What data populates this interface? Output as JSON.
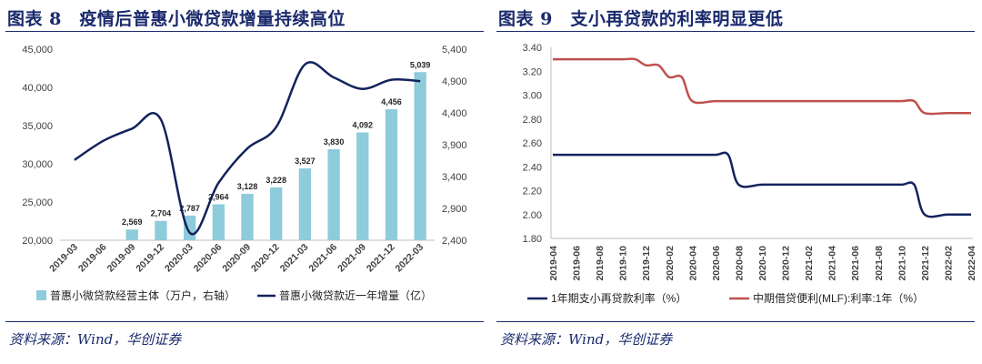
{
  "charts": [
    {
      "title": "图表 8　疫情后普惠小微贷款增量持续高位",
      "source": "资料来源：Wind，华创证券"
    },
    {
      "title": "图表 9　支小再贷款的利率明显更低",
      "source": "资料来源：Wind，华创证券"
    }
  ],
  "chart_data": [
    {
      "type": "bar",
      "categories": [
        "2019-03",
        "2019-06",
        "2019-09",
        "2019-12",
        "2020-03",
        "2020-06",
        "2020-09",
        "2020-12",
        "2021-03",
        "2021-06",
        "2021-09",
        "2021-12",
        "2022-03"
      ],
      "series": [
        {
          "name": "普惠小微贷款经营主体（万户，右轴）",
          "axis": "right",
          "type": "bar",
          "color": "#8ecbdb",
          "values": [
            null,
            null,
            2569,
            2704,
            2787,
            2964,
            3128,
            3228,
            3527,
            3830,
            4092,
            4456,
            5039
          ],
          "labels": [
            "",
            "",
            "2,569",
            "2,704",
            "2,787",
            "2,964",
            "3,128",
            "3,228",
            "3,527",
            "3,830",
            "4,092",
            "4,456",
            "5,039"
          ]
        },
        {
          "name": "普惠小微贷款近一年增量（亿）",
          "axis": "left",
          "type": "line",
          "color": "#13235b",
          "values": [
            30500,
            33000,
            34600,
            35800,
            21000,
            27500,
            32000,
            34800,
            43000,
            41300,
            39800,
            41000,
            40800
          ]
        }
      ],
      "yAxisLeft": {
        "min": 20000,
        "max": 45000,
        "ticks": [
          "20,000",
          "25,000",
          "30,000",
          "35,000",
          "40,000",
          "45,000"
        ]
      },
      "yAxisRight": {
        "min": 2400,
        "max": 5400,
        "ticks": [
          "2,400",
          "2,900",
          "3,400",
          "3,900",
          "4,400",
          "4,900",
          "5,400"
        ]
      },
      "legend": "bottom",
      "grid": false
    },
    {
      "type": "line",
      "x": [
        "2019-04",
        "2019-06",
        "2019-08",
        "2019-10",
        "2019-12",
        "2020-02",
        "2020-04",
        "2020-06",
        "2020-08",
        "2020-10",
        "2020-12",
        "2021-02",
        "2021-04",
        "2021-06",
        "2021-08",
        "2021-10",
        "2021-12",
        "2022-02",
        "2022-04"
      ],
      "series": [
        {
          "name": "1年期支小再贷款利率（%）",
          "color": "#13235b",
          "values": [
            2.5,
            2.5,
            2.5,
            2.5,
            2.5,
            2.5,
            2.5,
            2.5,
            2.25,
            2.25,
            2.25,
            2.25,
            2.25,
            2.25,
            2.25,
            2.25,
            2.0,
            2.0,
            2.0
          ]
        },
        {
          "name": "中期借贷便利(MLF):利率:1年（%）",
          "color": "#c0504d",
          "values": [
            3.3,
            3.3,
            3.3,
            3.3,
            3.25,
            3.15,
            2.95,
            2.95,
            2.95,
            2.95,
            2.95,
            2.95,
            2.95,
            2.95,
            2.95,
            2.95,
            2.85,
            2.85,
            2.85
          ]
        }
      ],
      "yAxis": {
        "min": 1.8,
        "max": 3.4,
        "ticks": [
          "1.80",
          "2.00",
          "2.20",
          "2.40",
          "2.60",
          "2.80",
          "3.00",
          "3.20",
          "3.40"
        ]
      },
      "legend": "bottom",
      "grid": false
    }
  ]
}
